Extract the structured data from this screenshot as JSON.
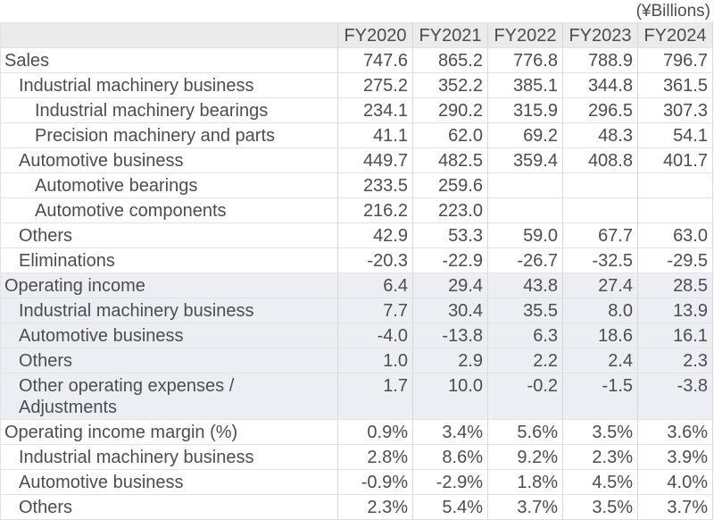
{
  "unit_label": "(¥Billions)",
  "colors": {
    "header_bg": "#ebebeb",
    "highlight_bg": "#ededf4",
    "row_bg": "#ffffff",
    "border_vertical": "#d7d7d7",
    "border_horizontal": "#e3e3e3",
    "text": "#4c4c52"
  },
  "chart_data": {
    "type": "table",
    "title": "(¥Billions)",
    "legend_position": "none",
    "grid": true,
    "columns": [
      "FY2020",
      "FY2021",
      "FY2022",
      "FY2023",
      "FY2024"
    ],
    "rows": [
      {
        "label": "Sales",
        "indent": 0,
        "highlight": false,
        "values": [
          "747.6",
          "865.2",
          "776.8",
          "788.9",
          "796.7"
        ]
      },
      {
        "label": "Industrial machinery business",
        "indent": 1,
        "highlight": false,
        "values": [
          "275.2",
          "352.2",
          "385.1",
          "344.8",
          "361.5"
        ]
      },
      {
        "label": "Industrial machinery bearings",
        "indent": 2,
        "highlight": false,
        "values": [
          "234.1",
          "290.2",
          "315.9",
          "296.5",
          "307.3"
        ]
      },
      {
        "label": "Precision machinery and parts",
        "indent": 2,
        "highlight": false,
        "values": [
          "41.1",
          "62.0",
          "69.2",
          "48.3",
          "54.1"
        ]
      },
      {
        "label": "Automotive business",
        "indent": 1,
        "highlight": false,
        "values": [
          "449.7",
          "482.5",
          "359.4",
          "408.8",
          "401.7"
        ]
      },
      {
        "label": "Automotive bearings",
        "indent": 2,
        "highlight": false,
        "values": [
          "233.5",
          "259.6",
          "",
          "",
          ""
        ]
      },
      {
        "label": "Automotive components",
        "indent": 2,
        "highlight": false,
        "values": [
          "216.2",
          "223.0",
          "",
          "",
          ""
        ]
      },
      {
        "label": "Others",
        "indent": 1,
        "highlight": false,
        "values": [
          "42.9",
          "53.3",
          "59.0",
          "67.7",
          "63.0"
        ]
      },
      {
        "label": "Eliminations",
        "indent": 1,
        "highlight": false,
        "values": [
          "-20.3",
          "-22.9",
          "-26.7",
          "-32.5",
          "-29.5"
        ]
      },
      {
        "label": "Operating income",
        "indent": 0,
        "highlight": true,
        "values": [
          "6.4",
          "29.4",
          "43.8",
          "27.4",
          "28.5"
        ]
      },
      {
        "label": "Industrial machinery business",
        "indent": 1,
        "highlight": true,
        "values": [
          "7.7",
          "30.4",
          "35.5",
          "8.0",
          "13.9"
        ]
      },
      {
        "label": "Automotive business",
        "indent": 1,
        "highlight": true,
        "values": [
          "-4.0",
          "-13.8",
          "6.3",
          "18.6",
          "16.1"
        ]
      },
      {
        "label": "Others",
        "indent": 1,
        "highlight": true,
        "values": [
          "1.0",
          "2.9",
          "2.2",
          "2.4",
          "2.3"
        ]
      },
      {
        "label": "Other operating expenses /\nAdjustments",
        "indent": 1,
        "highlight": true,
        "values": [
          "1.7",
          "10.0",
          "-0.2",
          "-1.5",
          "-3.8"
        ]
      },
      {
        "label": "Operating income margin (%)",
        "indent": 0,
        "highlight": false,
        "values": [
          "0.9%",
          "3.4%",
          "5.6%",
          "3.5%",
          "3.6%"
        ]
      },
      {
        "label": "Industrial machinery business",
        "indent": 1,
        "highlight": false,
        "values": [
          "2.8%",
          "8.6%",
          "9.2%",
          "2.3%",
          "3.9%"
        ]
      },
      {
        "label": "Automotive business",
        "indent": 1,
        "highlight": false,
        "values": [
          "-0.9%",
          "-2.9%",
          "1.8%",
          "4.5%",
          "4.0%"
        ]
      },
      {
        "label": "Others",
        "indent": 1,
        "highlight": false,
        "values": [
          "2.3%",
          "5.4%",
          "3.7%",
          "3.5%",
          "3.7%"
        ]
      }
    ]
  }
}
